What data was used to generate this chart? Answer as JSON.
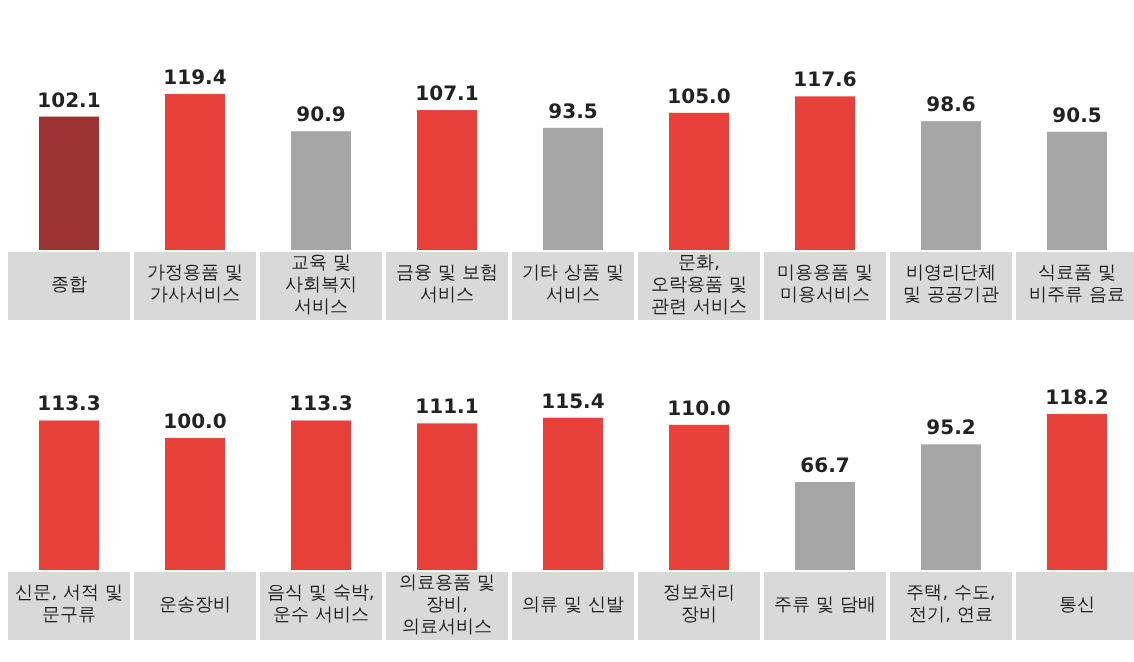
{
  "chart_data": [
    {
      "type": "bar",
      "categories": [
        "종합",
        "가정용품 및 가사서비스",
        "교육 및 사회복지 서비스",
        "금융 및 보험 서비스",
        "기타 상품 및 서비스",
        "문화, 오락용품 및 관련 서비스",
        "미용용품 및 미용서비스",
        "비영리단체 및 공공기관",
        "식료품 및 비주류 음료"
      ],
      "values": [
        102.1,
        119.4,
        90.9,
        107.1,
        93.5,
        105.0,
        117.6,
        98.6,
        90.5
      ],
      "value_labels": [
        "102.1",
        "119.4",
        "90.9",
        "107.1",
        "93.5",
        "105.0",
        "117.6",
        "98.6",
        "90.5"
      ],
      "colors": [
        "#9c3333",
        "#e8413b",
        "#a6a6a6",
        "#e8413b",
        "#a6a6a6",
        "#e8413b",
        "#e8413b",
        "#a6a6a6",
        "#a6a6a6"
      ]
    },
    {
      "type": "bar",
      "categories": [
        "신문, 서적 및 문구류",
        "운송장비",
        "음식 및 숙박, 운수 서비스",
        "의료용품 및 장비, 의료서비스",
        "의류 및 신발",
        "정보처리 장비",
        "주류 및 담배",
        "주택, 수도, 전기, 연료",
        "통신"
      ],
      "values": [
        113.3,
        100.0,
        113.3,
        111.1,
        115.4,
        110.0,
        66.7,
        95.2,
        118.2
      ],
      "value_labels": [
        "113.3",
        "100.0",
        "113.3",
        "111.1",
        "115.4",
        "110.0",
        "66.7",
        "95.2",
        "118.2"
      ],
      "colors": [
        "#e8413b",
        "#e8413b",
        "#e8413b",
        "#e8413b",
        "#e8413b",
        "#e8413b",
        "#a6a6a6",
        "#a6a6a6",
        "#e8413b"
      ]
    }
  ]
}
